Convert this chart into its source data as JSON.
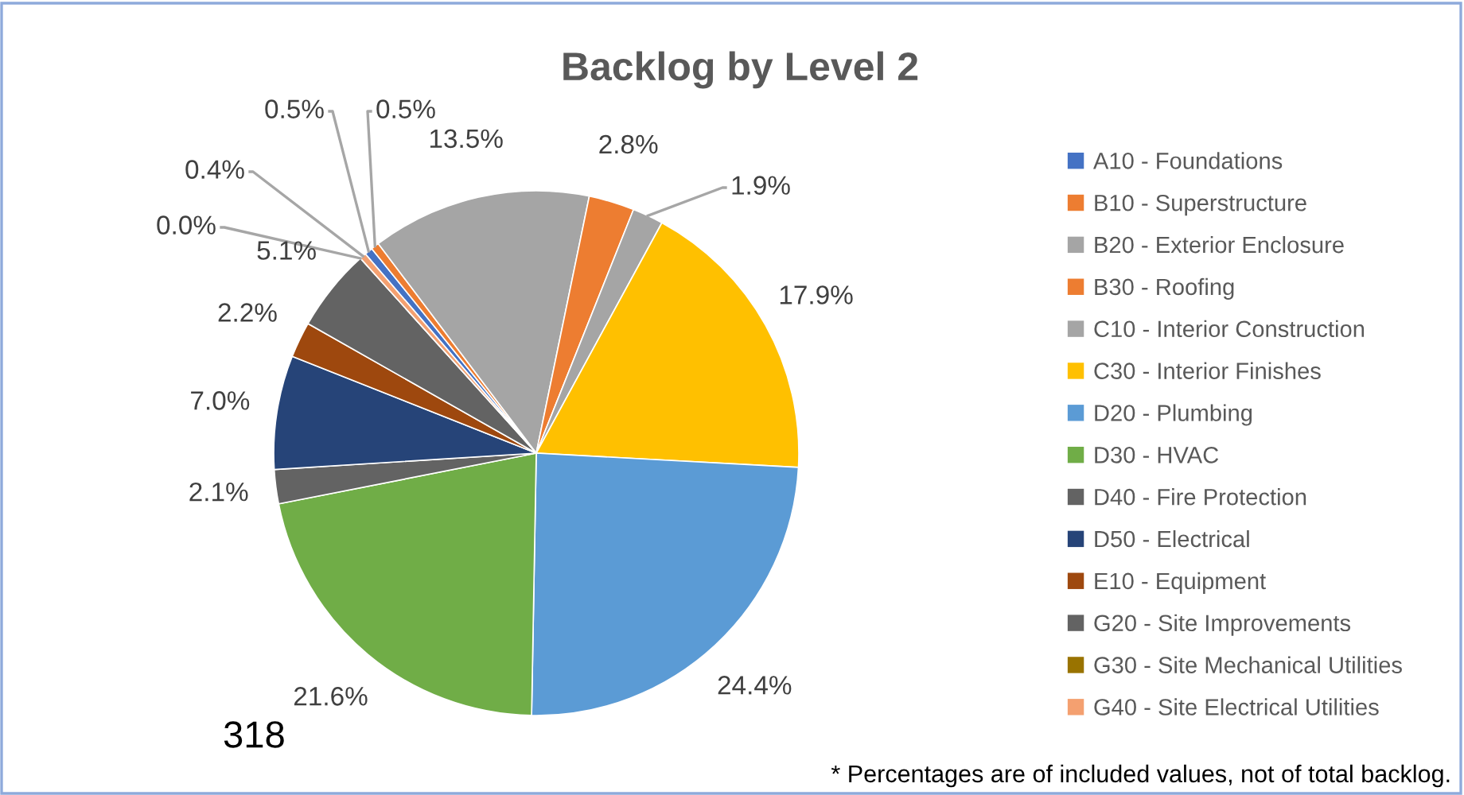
{
  "chart_data": {
    "type": "pie",
    "title": "Backlog by Level 2",
    "categories": [
      "A10 - Foundations",
      "B10 - Superstructure",
      "B20 - Exterior Enclosure",
      "B30 - Roofing",
      "C10 - Interior Construction",
      "C30 - Interior Finishes",
      "D20 - Plumbing",
      "D30 - HVAC",
      "D40 - Fire Protection",
      "D50 - Electrical",
      "E10 - Equipment",
      "G20 - Site Improvements",
      "G30 - Site Mechanical Utilities",
      "G40 - Site Electrical Utilities"
    ],
    "values": [
      0.5,
      0.5,
      13.5,
      2.8,
      1.9,
      17.9,
      24.4,
      21.6,
      2.1,
      7.0,
      2.2,
      5.1,
      0.0,
      0.4
    ],
    "value_labels": [
      "0.5%",
      "0.5%",
      "13.5%",
      "2.8%",
      "1.9%",
      "17.9%",
      "24.4%",
      "21.6%",
      "2.1%",
      "7.0%",
      "2.2%",
      "5.1%",
      "0.0%",
      "0.4%"
    ],
    "colors": [
      "#4472c4",
      "#ed7d31",
      "#a5a5a5",
      "#ed7d31",
      "#a5a5a5",
      "#ffc000",
      "#5b9bd5",
      "#70ad47",
      "#636363",
      "#264478",
      "#9e480e",
      "#636363",
      "#997300",
      "#f4a070"
    ],
    "legend": "right",
    "annotations": [
      "318",
      "* Percentages are of included values, not of total backlog."
    ]
  }
}
